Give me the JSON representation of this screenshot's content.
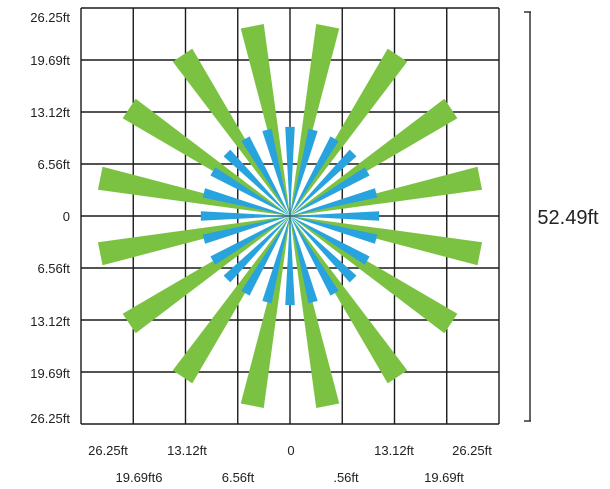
{
  "diagram": {
    "y_labels": [
      "26.25ft",
      "19.69ft",
      "13.12ft",
      "6.56ft",
      "0",
      "6.56ft",
      "13.12ft",
      "19.69ft",
      "26.25ft"
    ],
    "x_labels_row1": [
      "26.25ft",
      "13.12ft",
      "0",
      "13.12ft",
      "26.25ft"
    ],
    "x_labels_row2": [
      "19.69ft6",
      "6.56ft",
      ".56ft",
      "19.69ft"
    ],
    "dimension_label": "52.49ft",
    "grid_divisions": 8,
    "colors": {
      "grid": "#1a1a1a",
      "long_rays": "#7cc242",
      "short_rays": "#29a3dd",
      "text": "#222222"
    },
    "long_rays": {
      "count": 16,
      "start_angle_deg": 11.25,
      "step_deg": 22.5,
      "length_ft": 24.3,
      "end_width_ft": 2.95
    },
    "short_rays": {
      "count": 24,
      "start_angle_deg": 0,
      "step_deg": 15,
      "length_ft": 11.2,
      "end_width_ft": 1.2
    }
  }
}
